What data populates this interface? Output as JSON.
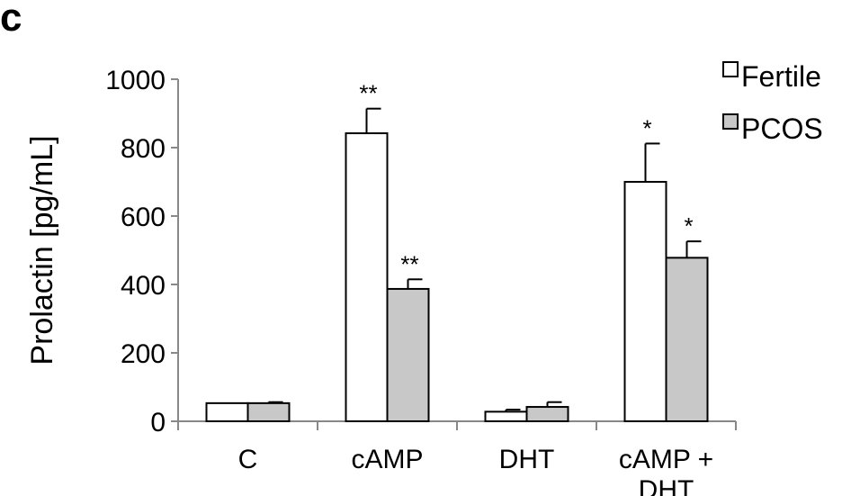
{
  "panel_label": "c",
  "chart_data": {
    "type": "bar",
    "ylabel": "Prolactin [pg/mL]",
    "xlabel": "",
    "ylim": [
      0,
      1000
    ],
    "yticks": [
      0,
      200,
      400,
      600,
      800,
      1000
    ],
    "categories": [
      [
        "C"
      ],
      [
        "cAMP"
      ],
      [
        "DHT"
      ],
      [
        "cAMP +",
        "DHT"
      ]
    ],
    "series": [
      {
        "name": "Fertile",
        "color": "#ffffff",
        "values": [
          53,
          842,
          28,
          700
        ],
        "errors": [
          0,
          72,
          6,
          112
        ],
        "significance": [
          "",
          "**",
          "",
          "*"
        ]
      },
      {
        "name": "PCOS",
        "color": "#c8c8c8",
        "values": [
          53,
          387,
          42,
          478
        ],
        "errors": [
          3,
          28,
          14,
          48
        ],
        "significance": [
          "",
          "**",
          "",
          "*"
        ]
      }
    ],
    "legend_position": "top-right",
    "grid": false
  }
}
